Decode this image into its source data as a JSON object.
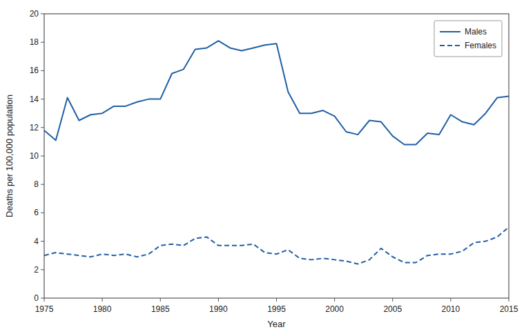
{
  "chart_data": {
    "type": "line",
    "x": [
      1975,
      1976,
      1977,
      1978,
      1979,
      1980,
      1981,
      1982,
      1983,
      1984,
      1985,
      1986,
      1987,
      1988,
      1989,
      1990,
      1991,
      1992,
      1993,
      1994,
      1995,
      1996,
      1997,
      1998,
      1999,
      2000,
      2001,
      2002,
      2003,
      2004,
      2005,
      2006,
      2007,
      2008,
      2009,
      2010,
      2011,
      2012,
      2013,
      2014,
      2015
    ],
    "series": [
      {
        "name": "Males",
        "color": "#1f5fa6",
        "line_style": "solid",
        "values": [
          11.8,
          11.1,
          14.1,
          12.5,
          12.9,
          13.0,
          13.5,
          13.5,
          13.8,
          14.0,
          14.0,
          15.8,
          16.1,
          17.5,
          17.6,
          18.1,
          17.6,
          17.4,
          17.6,
          17.8,
          17.9,
          14.5,
          13.0,
          13.0,
          13.2,
          12.8,
          11.7,
          11.5,
          12.5,
          12.4,
          11.4,
          10.8,
          10.8,
          11.6,
          11.5,
          12.9,
          12.4,
          12.2,
          13.0,
          14.1,
          14.2
        ]
      },
      {
        "name": "Females",
        "color": "#1f5fa6",
        "line_style": "dashed",
        "values": [
          3.0,
          3.2,
          3.1,
          3.0,
          2.9,
          3.1,
          3.0,
          3.1,
          2.9,
          3.1,
          3.7,
          3.8,
          3.7,
          4.2,
          4.3,
          3.7,
          3.7,
          3.7,
          3.8,
          3.2,
          3.1,
          3.4,
          2.8,
          2.7,
          2.8,
          2.7,
          2.6,
          2.4,
          2.7,
          3.5,
          2.9,
          2.5,
          2.5,
          3.0,
          3.1,
          3.1,
          3.3,
          3.9,
          4.0,
          4.3,
          5.0
        ]
      }
    ],
    "xlim": [
      1975,
      2015
    ],
    "ylim": [
      0,
      20
    ],
    "xticks": [
      1975,
      1980,
      1985,
      1990,
      1995,
      2000,
      2005,
      2010,
      2015
    ],
    "yticks": [
      0,
      2,
      4,
      6,
      8,
      10,
      12,
      14,
      16,
      18,
      20
    ],
    "xlabel": "Year",
    "ylabel": "Deaths per 100,000 population",
    "legend": "upper right",
    "grid": false
  }
}
